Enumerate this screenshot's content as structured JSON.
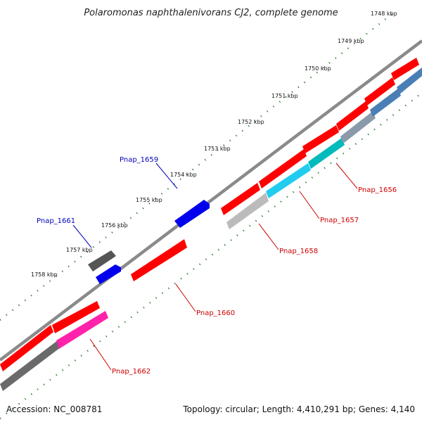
{
  "title": "Polaromonas naphthalenivorans CJ2, complete genome",
  "accession": "Accession: NC_008781",
  "stats": "Topology: circular; Length: 4,410,291 bp; Genes: 4,140",
  "kbp_ticks": [
    "1748 kbp",
    "1749 kbp",
    "1750 kbp",
    "1751 kbp",
    "1752 kbp",
    "1753 kbp",
    "1754 kbp",
    "1755 kbp",
    "1756 kbp",
    "1757 kbp",
    "1758 kbp"
  ],
  "gene_labels": [
    "Pnap_1656",
    "Pnap_1657",
    "Pnap_1658",
    "Pnap_1659",
    "Pnap_1660",
    "Pnap_1661",
    "Pnap_1662"
  ],
  "colors": {
    "cds": "#ff0000",
    "blue_gene": "#0000ee",
    "cyan_gene": "#00ccee",
    "teal_gene": "#00bbbb",
    "steel_gene": "#4a7fb5",
    "gray_gene": "#aaaaaa",
    "dark_gene": "#666666",
    "pink_gene": "#ff22aa",
    "backbone": "#8a8a8a",
    "tick_green": "#2a7a2a",
    "label_red": "#cc0000",
    "label_blue": "#0000bb"
  }
}
